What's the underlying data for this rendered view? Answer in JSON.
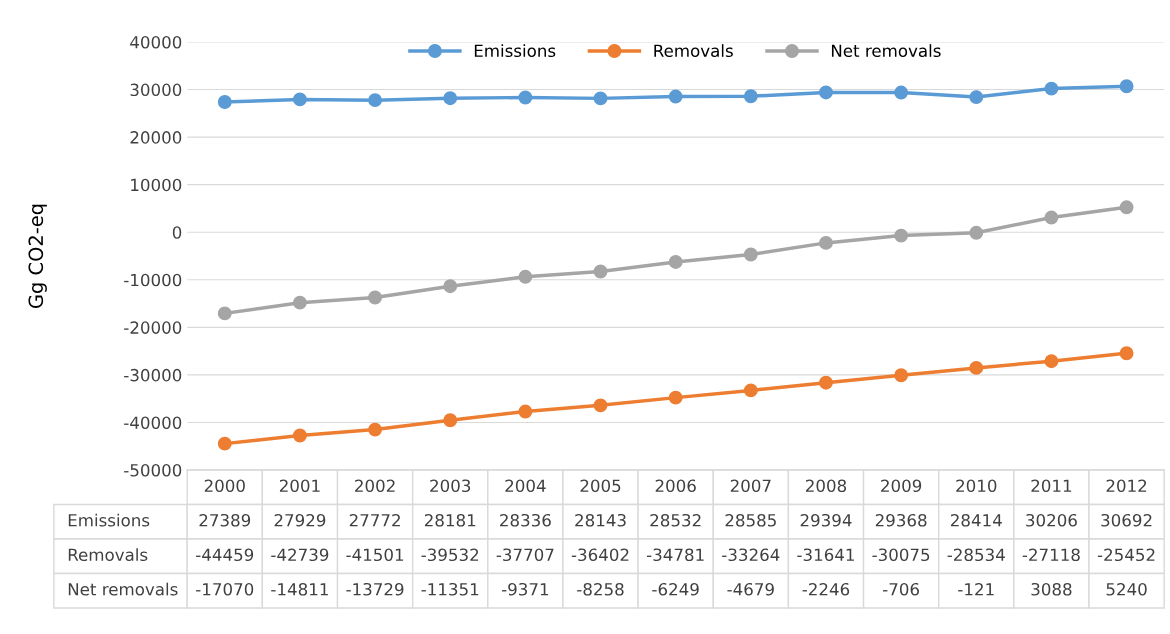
{
  "chart_data": {
    "type": "line",
    "ylabel": "Gg CO2-eq",
    "categories": [
      "2000",
      "2001",
      "2002",
      "2003",
      "2004",
      "2005",
      "2006",
      "2007",
      "2008",
      "2009",
      "2010",
      "2011",
      "2012"
    ],
    "series": [
      {
        "name": "Emissions",
        "color": "#5b9bd5",
        "values": [
          27389,
          27929,
          27772,
          28181,
          28336,
          28143,
          28532,
          28585,
          29394,
          29368,
          28414,
          30206,
          30692
        ]
      },
      {
        "name": "Removals",
        "color": "#ed7d31",
        "values": [
          -44459,
          -42739,
          -41501,
          -39532,
          -37707,
          -36402,
          -34781,
          -33264,
          -31641,
          -30075,
          -28534,
          -27118,
          -25452
        ]
      },
      {
        "name": "Net removals",
        "color": "#a5a5a5",
        "values": [
          -17070,
          -14811,
          -13729,
          -11351,
          -9371,
          -8258,
          -6249,
          -4679,
          -2246,
          -706,
          -121,
          3088,
          5240
        ]
      }
    ],
    "ylim": [
      -50000,
      40000
    ],
    "yticks": [
      -50000,
      -40000,
      -30000,
      -20000,
      -10000,
      0,
      10000,
      20000,
      30000,
      40000
    ],
    "grid": "y",
    "legend": "top",
    "marker": "circle",
    "line_style": "solid",
    "data_labels": true
  }
}
